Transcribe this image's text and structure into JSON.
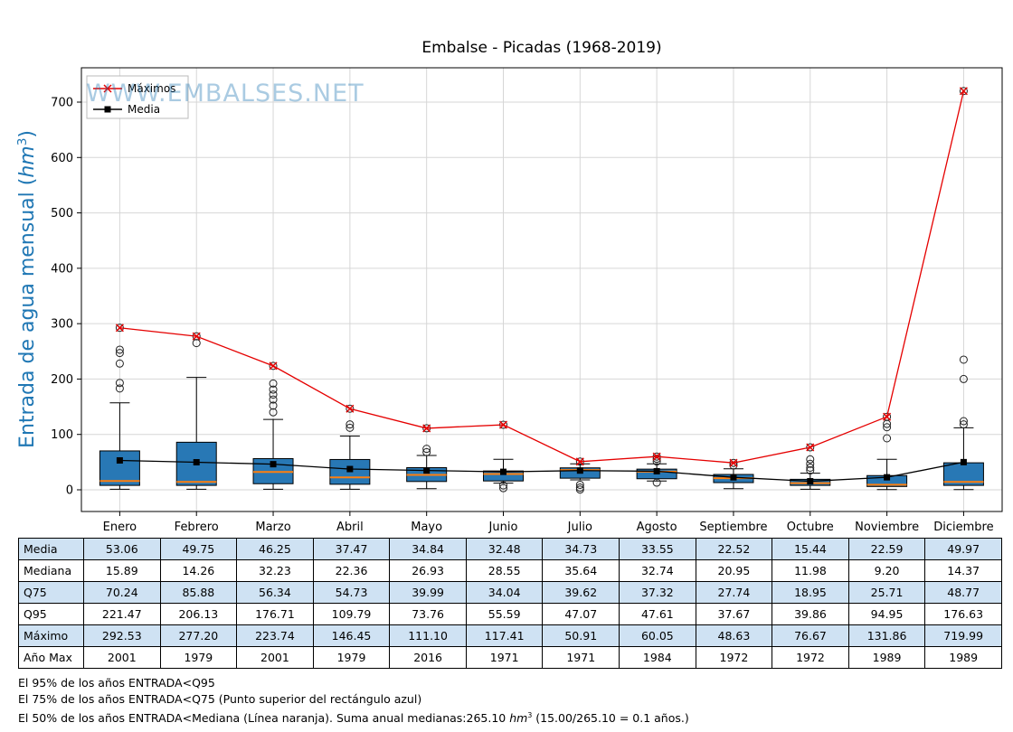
{
  "watermark": "WWW.EMBALSES.NET",
  "colors": {
    "box_fill": "#2878b5",
    "median": "#ff7f0e",
    "maximos": "#e50000",
    "media": "#000000",
    "grid": "#d6d6d6",
    "axis_label": "#1f77b4",
    "watermark": "#1f77b4",
    "table_shade": "#cfe2f3"
  },
  "chart_data": {
    "type": "boxplot",
    "title": "Embalse - Picadas (1968-2019)",
    "ylabel": "Entrada de agua mensual (hm³)",
    "ylabel_parts": {
      "pre": "Entrada de agua mensual (",
      "unit": "hm",
      "exp": "3",
      "close": ")"
    },
    "ylim": [
      -39,
      762
    ],
    "yticks": [
      0,
      100,
      200,
      300,
      400,
      500,
      600,
      700
    ],
    "grid": true,
    "legend_position": "upper left",
    "categories": [
      "Enero",
      "Febrero",
      "Marzo",
      "Abril",
      "Mayo",
      "Junio",
      "Julio",
      "Agosto",
      "Septiembre",
      "Octubre",
      "Noviembre",
      "Diciembre"
    ],
    "series": [
      {
        "name": "Máximos",
        "marker": "x",
        "color": "#e50000",
        "values": [
          292.53,
          277.2,
          223.74,
          146.45,
          111.1,
          117.41,
          50.91,
          60.05,
          48.63,
          76.67,
          131.86,
          719.99
        ]
      },
      {
        "name": "Media",
        "marker": "square",
        "color": "#000000",
        "values": [
          53.06,
          49.75,
          46.25,
          37.47,
          34.84,
          32.48,
          34.73,
          33.55,
          22.52,
          15.44,
          22.59,
          49.97
        ]
      }
    ],
    "boxes": {
      "median": [
        15.89,
        14.26,
        32.23,
        22.36,
        26.93,
        28.55,
        35.64,
        32.74,
        20.95,
        11.98,
        9.2,
        14.37
      ],
      "q75": [
        70.24,
        85.88,
        56.34,
        54.73,
        39.99,
        34.04,
        39.62,
        37.32,
        27.74,
        18.95,
        25.71,
        48.77
      ],
      "q95": [
        221.47,
        206.13,
        176.71,
        109.79,
        73.76,
        55.59,
        47.07,
        47.61,
        37.67,
        39.86,
        94.95,
        176.63
      ],
      "q25": [
        8,
        8,
        11,
        10,
        15,
        16,
        21,
        20,
        13,
        8,
        6,
        8
      ],
      "whisker_low": [
        1,
        1,
        1,
        1,
        2,
        12,
        18,
        16,
        2,
        1,
        0.5,
        0.5
      ],
      "whisker_high": [
        157,
        203,
        127,
        97,
        62,
        55,
        47,
        47,
        38,
        30,
        55,
        112
      ],
      "outliers": [
        [
          183,
          193,
          228,
          247,
          253
        ],
        [
          265
        ],
        [
          140,
          152,
          163,
          172,
          181,
          192
        ],
        [
          112,
          118
        ],
        [
          68,
          74
        ],
        [
          3,
          8
        ],
        [
          0.5,
          4,
          9
        ],
        [
          13,
          51,
          56
        ],
        [
          44
        ],
        [
          35,
          40,
          47,
          55
        ],
        [
          93,
          113,
          119
        ],
        [
          118,
          124,
          200,
          235
        ]
      ]
    }
  },
  "table": {
    "row_headers": [
      "Media",
      "Mediana",
      "Q75",
      "Q95",
      "Máximo",
      "Año Max"
    ],
    "columns": [
      "Enero",
      "Febrero",
      "Marzo",
      "Abril",
      "Mayo",
      "Junio",
      "Julio",
      "Agosto",
      "Septiembre",
      "Octubre",
      "Noviembre",
      "Diciembre"
    ],
    "rows": [
      [
        "53.06",
        "49.75",
        "46.25",
        "37.47",
        "34.84",
        "32.48",
        "34.73",
        "33.55",
        "22.52",
        "15.44",
        "22.59",
        "49.97"
      ],
      [
        "15.89",
        "14.26",
        "32.23",
        "22.36",
        "26.93",
        "28.55",
        "35.64",
        "32.74",
        "20.95",
        "11.98",
        "9.20",
        "14.37"
      ],
      [
        "70.24",
        "85.88",
        "56.34",
        "54.73",
        "39.99",
        "34.04",
        "39.62",
        "37.32",
        "27.74",
        "18.95",
        "25.71",
        "48.77"
      ],
      [
        "221.47",
        "206.13",
        "176.71",
        "109.79",
        "73.76",
        "55.59",
        "47.07",
        "47.61",
        "37.67",
        "39.86",
        "94.95",
        "176.63"
      ],
      [
        "292.53",
        "277.20",
        "223.74",
        "146.45",
        "111.10",
        "117.41",
        "50.91",
        "60.05",
        "48.63",
        "76.67",
        "131.86",
        "719.99"
      ],
      [
        "2001",
        "1979",
        "2001",
        "1979",
        "2016",
        "1971",
        "1971",
        "1984",
        "1972",
        "1972",
        "1989",
        "1989"
      ]
    ]
  },
  "footer": {
    "line1": "El 95% de los años ENTRADA<Q95",
    "line2": "El 75% de los años ENTRADA<Q75 (Punto superior del rectángulo azul)",
    "line3_pre": "El 50% de los años ENTRADA<Mediana (Línea naranja). Suma anual medianas:265.10 ",
    "unit": "hm",
    "exp": "3",
    "line3_post": " (15.00/265.10 = 0.1 años.)"
  }
}
